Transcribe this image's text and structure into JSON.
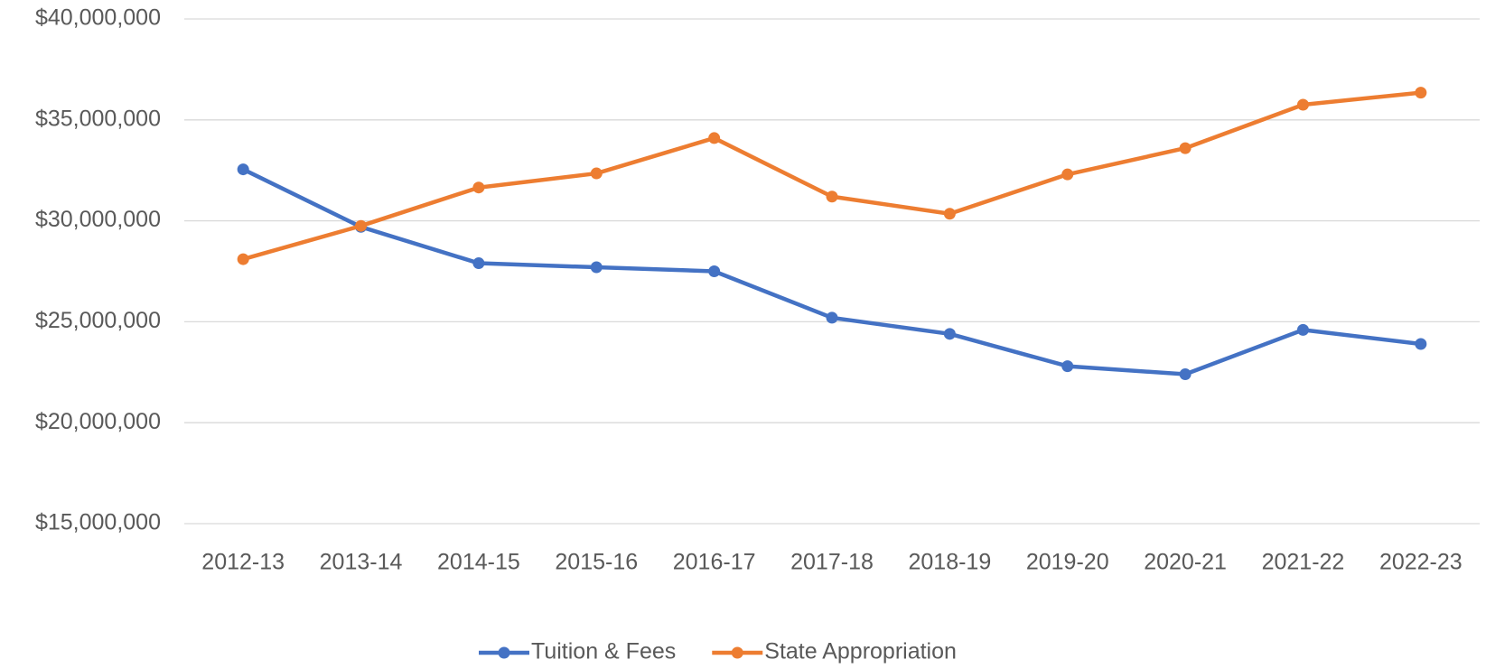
{
  "chart_data": {
    "type": "line",
    "categories": [
      "2012-13",
      "2013-14",
      "2014-15",
      "2015-16",
      "2016-17",
      "2017-18",
      "2018-19",
      "2019-20",
      "2020-21",
      "2021-22",
      "2022-23"
    ],
    "series": [
      {
        "name": "Tuition & Fees",
        "color": "#4472c4",
        "values": [
          32550000,
          29700000,
          27900000,
          27700000,
          27500000,
          25200000,
          24400000,
          22800000,
          22400000,
          24600000,
          23900000
        ]
      },
      {
        "name": "State Appropriation",
        "color": "#ed7d31",
        "values": [
          28100000,
          29750000,
          31650000,
          32350000,
          34100000,
          31200000,
          30350000,
          32300000,
          33600000,
          35750000,
          36350000
        ]
      }
    ],
    "ylim": [
      15000000,
      40000000
    ],
    "yticks": [
      {
        "value": 15000000,
        "label": "$15,000,000"
      },
      {
        "value": 20000000,
        "label": "$20,000,000"
      },
      {
        "value": 25000000,
        "label": "$25,000,000"
      },
      {
        "value": 30000000,
        "label": "$30,000,000"
      },
      {
        "value": 35000000,
        "label": "$35,000,000"
      },
      {
        "value": 40000000,
        "label": "$40,000,000"
      }
    ],
    "grid": true,
    "legend": "bottom"
  }
}
